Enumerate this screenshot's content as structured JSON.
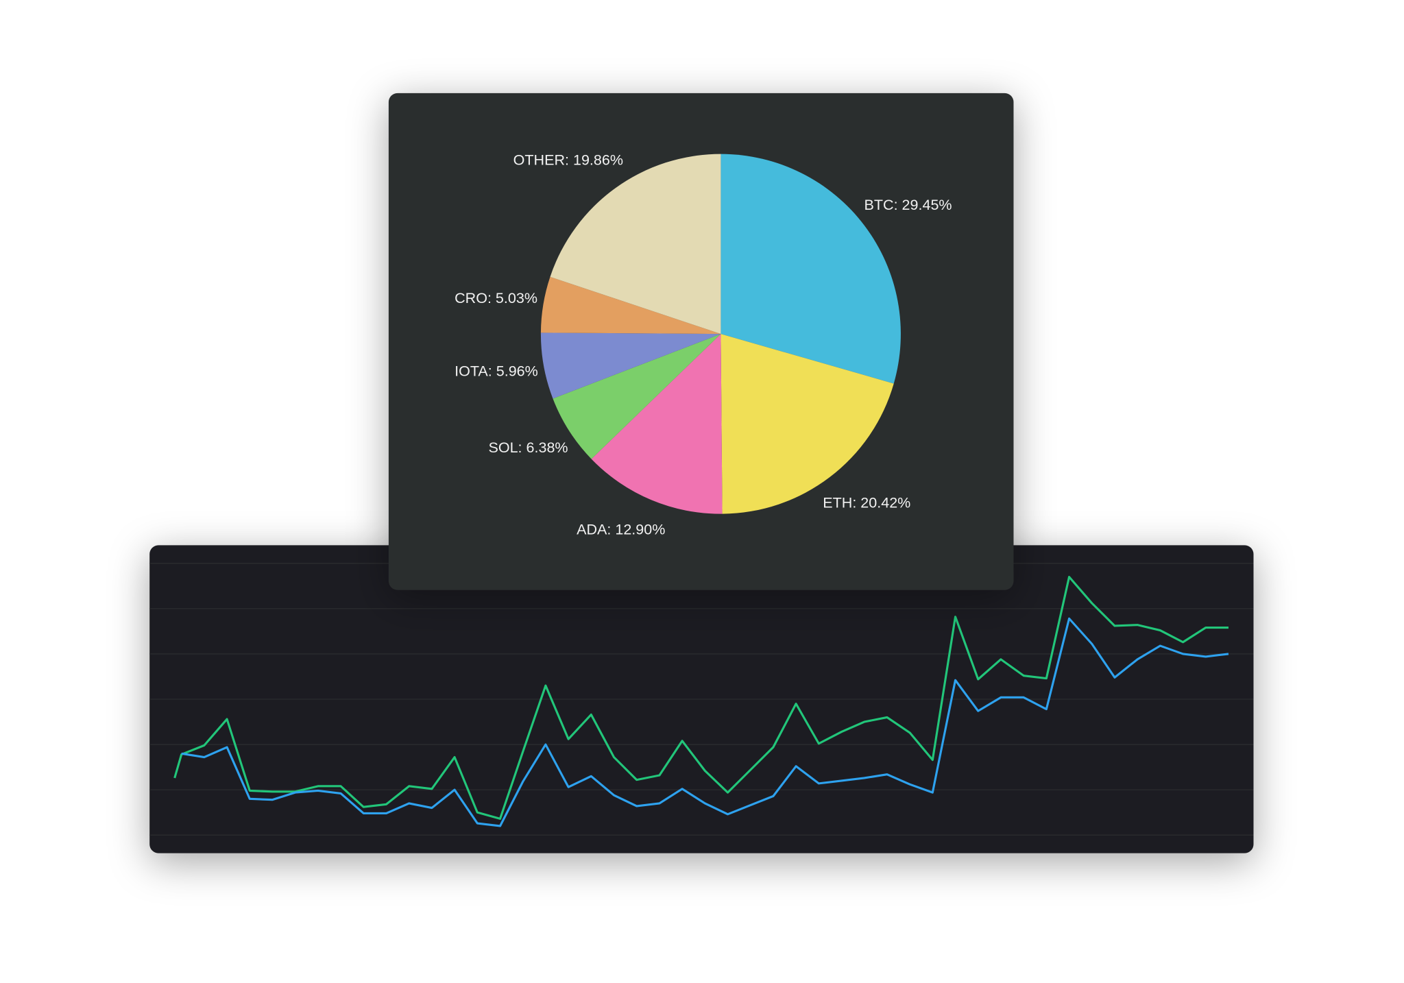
{
  "chart_data": [
    {
      "type": "line",
      "x": [
        -0.3,
        0,
        1,
        2,
        3,
        4,
        5,
        6,
        7,
        8,
        9,
        10,
        11,
        12,
        13,
        14,
        15,
        16,
        17,
        18,
        19,
        20,
        21,
        22,
        23,
        24,
        25,
        26,
        27,
        28,
        29,
        30,
        31,
        32,
        33,
        34,
        35,
        36,
        37,
        38,
        39,
        40,
        41,
        42,
        43,
        44,
        45,
        46
      ],
      "xlim": [
        -1.4,
        47.1
      ],
      "ylim": [
        -0.4,
        6.4
      ],
      "yticks": [
        0,
        1,
        2,
        3,
        4,
        5,
        6
      ],
      "grid": true,
      "series": [
        {
          "color": "#22c67a",
          "values": [
            1.26,
            1.78,
            1.98,
            2.56,
            0.98,
            0.96,
            0.96,
            1.08,
            1.08,
            0.62,
            0.68,
            1.08,
            1.02,
            1.72,
            0.5,
            0.36,
            1.84,
            3.3,
            2.12,
            2.66,
            1.72,
            1.22,
            1.32,
            2.08,
            1.42,
            0.94,
            1.44,
            1.94,
            2.9,
            2.02,
            2.28,
            2.5,
            2.6,
            2.26,
            1.66,
            4.82,
            3.44,
            3.88,
            3.52,
            3.46,
            5.7,
            5.12,
            4.62,
            4.64,
            4.52,
            4.26,
            4.58,
            4.58
          ]
        },
        {
          "color": "#2ea2ef",
          "values": [
            null,
            1.8,
            1.72,
            1.94,
            0.8,
            0.78,
            0.94,
            0.98,
            0.92,
            0.48,
            0.48,
            0.7,
            0.6,
            1.0,
            0.26,
            0.2,
            1.18,
            2.0,
            1.06,
            1.3,
            0.88,
            0.64,
            0.7,
            1.02,
            0.7,
            0.46,
            0.66,
            0.86,
            1.52,
            1.14,
            1.2,
            1.26,
            1.34,
            1.12,
            0.94,
            3.42,
            2.74,
            3.04,
            3.04,
            2.78,
            4.78,
            4.22,
            3.48,
            3.88,
            4.18,
            4.0,
            3.94,
            4.0
          ]
        }
      ]
    },
    {
      "type": "pie",
      "categories": [
        "BTC",
        "ETH",
        "ADA",
        "SOL",
        "IOTA",
        "CRO",
        "OTHER"
      ],
      "values": [
        29.45,
        20.42,
        12.9,
        6.38,
        5.96,
        5.03,
        19.86
      ],
      "value_labels": [
        "BTC: 29.45%",
        "ETH: 20.42%",
        "ADA: 12.90%",
        "SOL: 6.38%",
        "IOTA: 5.96%",
        "CRO: 5.03%",
        "OTHER: 19.86%"
      ],
      "colors": [
        "#45bbdc",
        "#f0df56",
        "#f073b1",
        "#7bcf6a",
        "#7c8bd0",
        "#e39f60",
        "#e3dab3"
      ]
    }
  ]
}
